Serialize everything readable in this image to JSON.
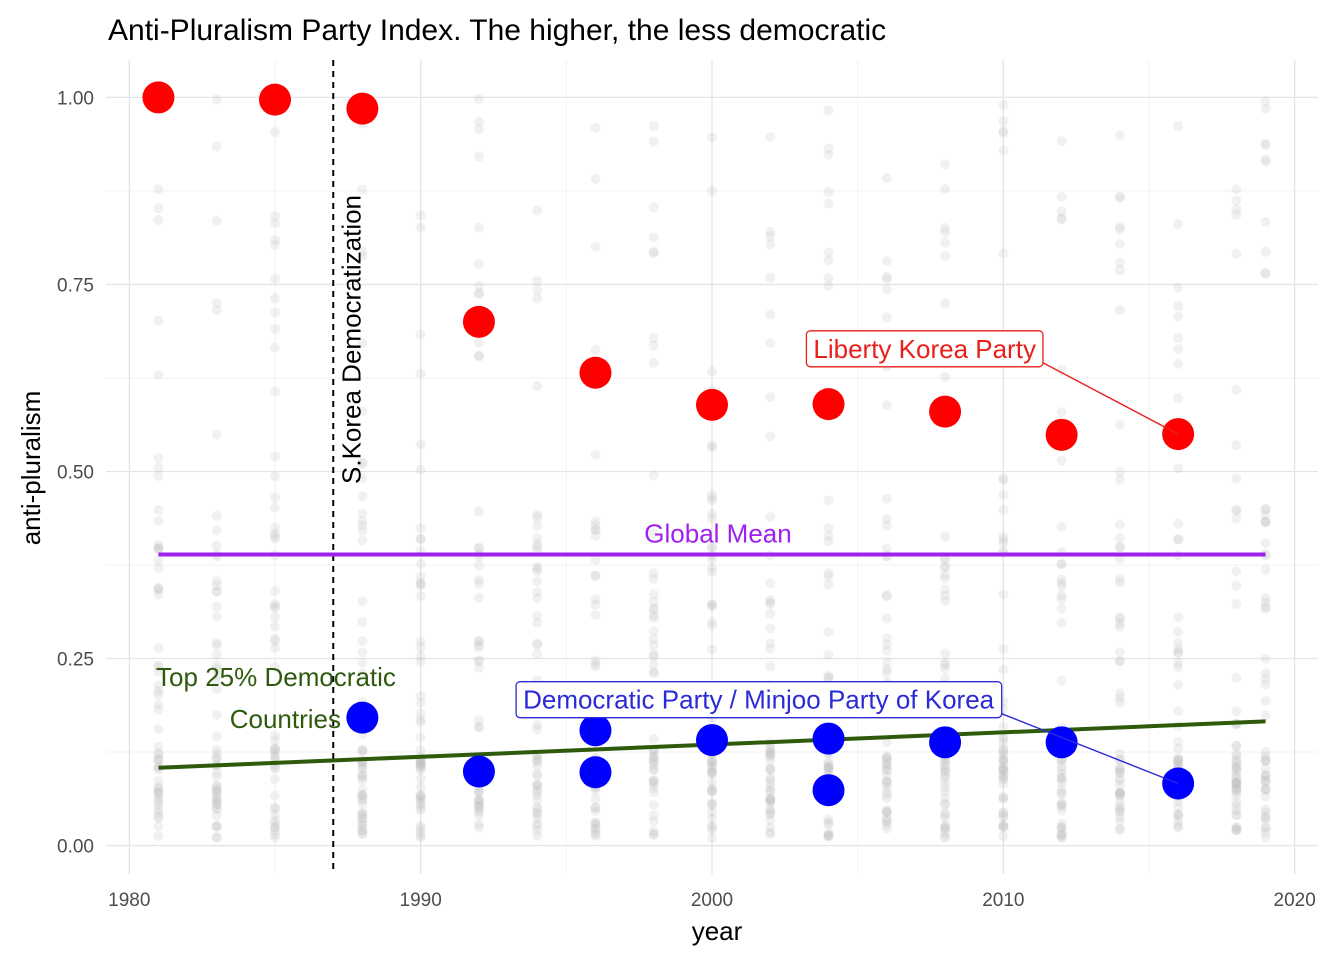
{
  "chart_data": {
    "type": "scatter",
    "title": "Anti-Pluralism Party Index. The higher, the less democratic",
    "xlabel": "year",
    "ylabel": "anti-pluralism",
    "xlim": [
      1979.2,
      2020.8
    ],
    "ylim": [
      -0.038,
      1.05
    ],
    "x_ticks": [
      1980,
      1990,
      2000,
      2010,
      2020
    ],
    "y_ticks": [
      0,
      0.25,
      0.5,
      0.75,
      1.0
    ],
    "x_tick_labels": [
      "1980",
      "1990",
      "2000",
      "2010",
      "2020"
    ],
    "y_tick_labels": [
      "0.00",
      "0.25",
      "0.50",
      "0.75",
      "1.00"
    ],
    "grid": true,
    "background_series": {
      "color": "#bebebe",
      "years": [
        1981,
        1983,
        1985,
        1988,
        1990,
        1992,
        1994,
        1996,
        1998,
        2000,
        2002,
        2004,
        2006,
        2008,
        2010,
        2012,
        2014,
        2016,
        2018,
        2019
      ]
    },
    "series": [
      {
        "name": "Liberty Korea Party",
        "color": "#ff0000",
        "points": [
          {
            "x": 1981,
            "y": 1.0
          },
          {
            "x": 1985,
            "y": 0.997
          },
          {
            "x": 1988,
            "y": 0.985
          },
          {
            "x": 1992,
            "y": 0.7
          },
          {
            "x": 1996,
            "y": 0.632
          },
          {
            "x": 2000,
            "y": 0.589
          },
          {
            "x": 2004,
            "y": 0.59
          },
          {
            "x": 2008,
            "y": 0.58
          },
          {
            "x": 2012,
            "y": 0.549
          },
          {
            "x": 2016,
            "y": 0.55
          }
        ]
      },
      {
        "name": "Democratic Party / Minjoo Party of Korea",
        "color": "#0000ff",
        "points": [
          {
            "x": 1988,
            "y": 0.171
          },
          {
            "x": 1992,
            "y": 0.099
          },
          {
            "x": 1996,
            "y": 0.154
          },
          {
            "x": 1996,
            "y": 0.098
          },
          {
            "x": 2000,
            "y": 0.141
          },
          {
            "x": 2004,
            "y": 0.143
          },
          {
            "x": 2004,
            "y": 0.074
          },
          {
            "x": 2008,
            "y": 0.138
          },
          {
            "x": 2012,
            "y": 0.138
          },
          {
            "x": 2016,
            "y": 0.083
          }
        ]
      }
    ],
    "reference_lines": {
      "global_mean": {
        "label": "Global Mean",
        "y": 0.389,
        "x_start": 1981,
        "x_end": 2019,
        "color": "#a020f0"
      },
      "top25": {
        "label_line1": "Top 25% Democratic",
        "label_line2": "Countries",
        "x_start": 1981,
        "y_start": 0.104,
        "x_end": 2019,
        "y_end": 0.166,
        "color": "#2f5a0c"
      },
      "democratization": {
        "label": "S.Korea Democratization",
        "x": 1987,
        "color": "#000000"
      }
    },
    "annotations": {
      "liberty_label": {
        "text": "Liberty Korea Party",
        "x": 2007.3,
        "y": 0.664,
        "color": "#e8201a"
      },
      "democratic_label": {
        "text": "Democratic Party / Minjoo Party of Korea",
        "x": 2001.6,
        "y": 0.195,
        "color": "#2a2ad6"
      }
    }
  }
}
